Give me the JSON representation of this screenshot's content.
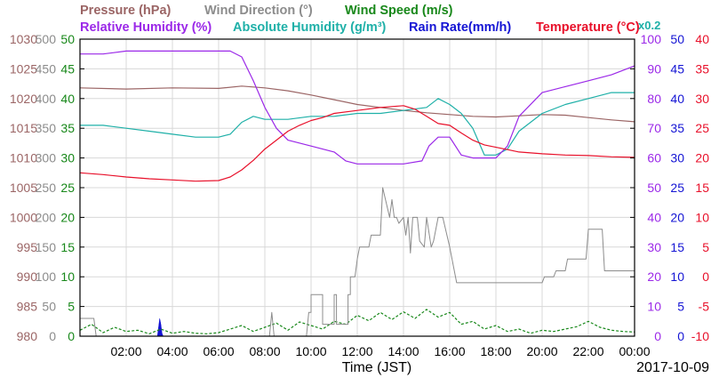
{
  "chart_data": {
    "type": "line",
    "date_label": "2017-10-09",
    "xlabel": "Time (JST)",
    "x_ticks": [
      "02:00",
      "04:00",
      "06:00",
      "08:00",
      "10:00",
      "12:00",
      "14:00",
      "16:00",
      "18:00",
      "20:00",
      "22:00",
      "00:00"
    ],
    "x_range_hours": [
      0,
      24
    ],
    "grid": true,
    "legend_row1": [
      {
        "name": "Pressure (hPa)",
        "color": "#9b6565"
      },
      {
        "name": "Wind Direction (°)",
        "color": "#8c8c8c"
      },
      {
        "name": "Wind Speed (m/s)",
        "color": "#18881a"
      }
    ],
    "legend_row2": [
      {
        "name": "Relative Humidity (%)",
        "color": "#9b28e8"
      },
      {
        "name": "Absolute Humidity (g/m³)",
        "color": "#1fb0a8"
      },
      {
        "name": "Rain Rate(mm/h)",
        "color": "#1414d4"
      },
      {
        "name": "Temperature (°C)",
        "color": "#e8102a"
      }
    ],
    "abs_humidity_scale_note": "x0.2",
    "left_axes": [
      {
        "name": "Pressure",
        "color": "#9b6565",
        "ticks": [
          "980",
          "985",
          "990",
          "995",
          "1000",
          "1005",
          "1010",
          "1015",
          "1020",
          "1025",
          "1030"
        ],
        "range": [
          980,
          1030
        ]
      },
      {
        "name": "Wind Direction",
        "color": "#8c8c8c",
        "ticks": [
          "0",
          "50",
          "100",
          "150",
          "200",
          "250",
          "300",
          "350",
          "400",
          "450",
          "500"
        ],
        "range": [
          0,
          500
        ]
      },
      {
        "name": "Wind Speed",
        "color": "#18881a",
        "ticks": [
          "0",
          "5",
          "10",
          "15",
          "20",
          "25",
          "30",
          "35",
          "40",
          "45",
          "50"
        ],
        "range": [
          0,
          50
        ]
      }
    ],
    "right_axes": [
      {
        "name": "Humidity",
        "color": "#9b28e8",
        "ticks": [
          "0",
          "10",
          "20",
          "30",
          "40",
          "50",
          "60",
          "70",
          "80",
          "90",
          "100"
        ],
        "range": [
          0,
          100
        ]
      },
      {
        "name": "Rain Rate",
        "color": "#1414d4",
        "ticks": [
          "0",
          "5",
          "10",
          "15",
          "20",
          "25",
          "30",
          "35",
          "40",
          "45",
          "50"
        ],
        "range": [
          0,
          50
        ]
      },
      {
        "name": "Temperature",
        "color": "#e8102a",
        "ticks": [
          "-10",
          "-5",
          "0",
          "5",
          "10",
          "15",
          "20",
          "25",
          "30",
          "35",
          "40"
        ],
        "range": [
          -10,
          40
        ]
      }
    ],
    "series": [
      {
        "name": "Pressure (hPa)",
        "color": "#9b6565",
        "axis": "pressure",
        "x": [
          0,
          2,
          4,
          6,
          7,
          8,
          9,
          10,
          11,
          12,
          13,
          14,
          15,
          16,
          17,
          18,
          19,
          20,
          21,
          22,
          23,
          24
        ],
        "y": [
          1021.8,
          1021.6,
          1021.8,
          1021.7,
          1022.1,
          1021.8,
          1021.3,
          1020.6,
          1019.8,
          1019.0,
          1018.5,
          1018.0,
          1017.6,
          1017.3,
          1017.0,
          1016.9,
          1017.1,
          1017.3,
          1017.2,
          1016.8,
          1016.4,
          1016.1
        ]
      },
      {
        "name": "Relative Humidity (%)",
        "color": "#9b28e8",
        "axis": "humidity",
        "x": [
          0,
          1,
          2,
          3,
          4,
          5,
          6,
          6.5,
          7,
          7.5,
          8,
          8.5,
          9,
          10,
          11,
          11.5,
          12,
          13,
          14,
          14.8,
          15.1,
          15.5,
          16,
          16.5,
          17,
          17.5,
          18,
          18.5,
          19,
          20,
          21,
          22,
          23,
          24
        ],
        "y": [
          95,
          95,
          96,
          96,
          96,
          96,
          96,
          96,
          94,
          86,
          77,
          70,
          66,
          64,
          62,
          59,
          58,
          58,
          58,
          59,
          64,
          67,
          67,
          61,
          60,
          60,
          60,
          64,
          74,
          82,
          84,
          86,
          88,
          91
        ]
      },
      {
        "name": "Absolute Humidity (g/m³)",
        "color": "#1fb0a8",
        "axis": "humidity",
        "x": [
          0,
          1,
          2,
          3,
          4,
          5,
          6,
          6.5,
          7,
          7.5,
          8,
          9,
          10,
          11,
          12,
          13,
          14,
          15,
          15.5,
          16,
          16.5,
          17,
          17.5,
          18,
          18.5,
          19,
          20,
          21,
          22,
          23,
          24
        ],
        "y": [
          71,
          71,
          70,
          69,
          68,
          67,
          67,
          68,
          72,
          74,
          73,
          73,
          74,
          74,
          75,
          75,
          76,
          77,
          80,
          78,
          75,
          70,
          61,
          61,
          63,
          69,
          75,
          78,
          80,
          82,
          82
        ]
      },
      {
        "name": "Temperature (°C)",
        "color": "#e8102a",
        "axis": "temperature",
        "x": [
          0,
          1,
          2,
          3,
          4,
          5,
          6,
          6.5,
          7,
          7.5,
          8,
          8.5,
          9,
          9.5,
          10,
          10.5,
          11,
          12,
          13,
          14,
          14.5,
          15,
          15.5,
          16,
          16.5,
          17,
          17.5,
          18,
          18.5,
          19,
          20,
          21,
          22,
          23,
          24
        ],
        "y": [
          17.5,
          17.2,
          16.8,
          16.5,
          16.3,
          16.1,
          16.2,
          16.8,
          18.0,
          19.6,
          21.5,
          23.0,
          24.5,
          25.5,
          26.3,
          26.8,
          27.5,
          28.0,
          28.5,
          28.8,
          28.2,
          27.0,
          25.8,
          25.5,
          24.2,
          23.0,
          22.2,
          21.8,
          21.4,
          21.0,
          20.7,
          20.5,
          20.4,
          20.2,
          20.1
        ]
      },
      {
        "name": "Wind Direction (°)",
        "color": "#8c8c8c",
        "axis": "wind_direction",
        "x": [
          0,
          0.6,
          0.7,
          8.2,
          8.3,
          8.4,
          8.5,
          9.8,
          9.9,
          10,
          10,
          10.5,
          10.5,
          11,
          11,
          11.1,
          11.1,
          11.6,
          11.6,
          11.7,
          11.7,
          11.9,
          12,
          12.1,
          12.5,
          12.6,
          13.0,
          13.1,
          13.4,
          13.5,
          13.6,
          13.7,
          13.8,
          14.0,
          14.1,
          14.2,
          14.3,
          14.4,
          14.6,
          14.7,
          14.9,
          15.0,
          15.2,
          15.3,
          15.5,
          15.6,
          15.7,
          16.0,
          16.1,
          16.3,
          16.4,
          16.6,
          16.8,
          16.9,
          17.0,
          17.5,
          18.0,
          19.0,
          20.0,
          20.1,
          20.5,
          20.6,
          21.0,
          21.1,
          21.8,
          21.9,
          22.0,
          22.1,
          22.5,
          22.6,
          22.7,
          24
        ],
        "y": [
          30,
          30,
          0,
          0,
          40,
          0,
          0,
          0,
          40,
          40,
          70,
          70,
          20,
          20,
          70,
          70,
          20,
          20,
          70,
          70,
          100,
          100,
          130,
          150,
          150,
          170,
          170,
          250,
          200,
          230,
          200,
          200,
          190,
          200,
          170,
          200,
          140,
          200,
          200,
          160,
          150,
          200,
          150,
          160,
          200,
          200,
          200,
          150,
          130,
          90,
          90,
          90,
          90,
          90,
          90,
          90,
          90,
          90,
          90,
          100,
          100,
          110,
          110,
          130,
          130,
          130,
          180,
          180,
          180,
          180,
          110,
          110
        ]
      },
      {
        "name": "Wind Speed (m/s)",
        "color": "#18881a",
        "axis": "wind_speed",
        "x": [
          0,
          0.5,
          1,
          1.5,
          2,
          2.5,
          3,
          3.5,
          4,
          4.5,
          5,
          5.5,
          6,
          6.5,
          7,
          7.5,
          8,
          8.5,
          9,
          9.5,
          10,
          10.5,
          11,
          11.5,
          12,
          12.5,
          13,
          13.5,
          14,
          14.5,
          15,
          15.5,
          16,
          16.5,
          17,
          17.5,
          18,
          18.5,
          19,
          19.5,
          20,
          20.5,
          21,
          21.5,
          22,
          22.5,
          23,
          23.5,
          24
        ],
        "y": [
          1.0,
          2.0,
          0.6,
          1.5,
          0.8,
          1.0,
          0.4,
          1.2,
          0.5,
          0.8,
          0.5,
          0.4,
          0.6,
          1.2,
          1.8,
          0.8,
          1.5,
          2.2,
          1.0,
          2.4,
          1.8,
          1.2,
          2.5,
          2.0,
          3.5,
          2.6,
          4.0,
          2.8,
          4.1,
          3.0,
          4.5,
          3.2,
          4.0,
          2.0,
          2.5,
          1.2,
          1.8,
          0.8,
          1.2,
          0.5,
          1.0,
          0.8,
          1.2,
          1.6,
          2.5,
          1.5,
          1.0,
          0.8,
          0.7
        ]
      },
      {
        "name": "Rain Rate(mm/h)",
        "color": "#1414d4",
        "axis": "rain_rate",
        "type": "area",
        "x": [
          0,
          3.35,
          3.4,
          3.45,
          3.5,
          3.55,
          3.6,
          24
        ],
        "y": [
          0,
          0,
          1.5,
          3.0,
          2.0,
          0.5,
          0,
          0
        ]
      }
    ]
  }
}
